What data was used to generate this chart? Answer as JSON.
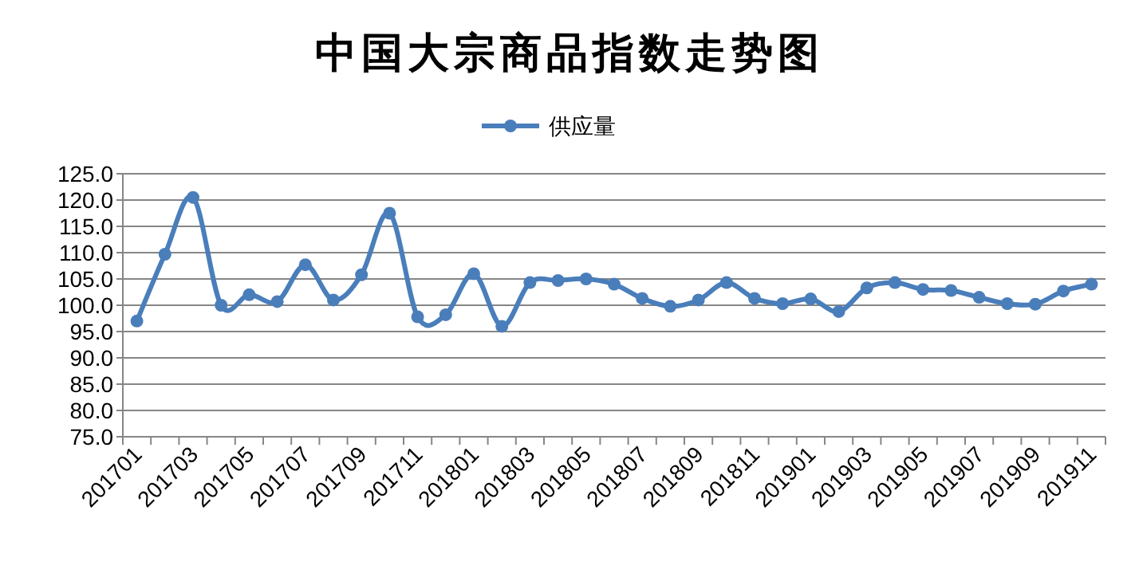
{
  "chart_data": {
    "type": "line",
    "title": "中国大宗商品指数走势图",
    "categories": [
      "201701",
      null,
      "201703",
      null,
      "201705",
      null,
      "201707",
      null,
      "201709",
      null,
      "201711",
      null,
      "201801",
      null,
      "201803",
      null,
      "201805",
      null,
      "201807",
      null,
      "201809",
      null,
      "201811",
      null,
      "201901",
      null,
      "201903",
      null,
      "201905",
      null,
      "201907",
      null,
      "201909",
      null,
      "201911"
    ],
    "series": [
      {
        "name": "供应量",
        "color": "#4a7ebb",
        "values": [
          97,
          109.7,
          120.5,
          100,
          102,
          100.7,
          107.7,
          101,
          105.8,
          117.5,
          97.8,
          98.2,
          106,
          96,
          104.3,
          104.7,
          105,
          104,
          101.3,
          99.8,
          101,
          104.3,
          101.3,
          100.3,
          101.2,
          98.8,
          103.3,
          104.3,
          103,
          102.8,
          101.5,
          100.3,
          100.2,
          102.7,
          104
        ]
      }
    ],
    "ylim": [
      75,
      125
    ],
    "yticks": [
      {
        "value": 75,
        "label": "75.0"
      },
      {
        "value": 80,
        "label": "80.0"
      },
      {
        "value": 85,
        "label": "85.0"
      },
      {
        "value": 90,
        "label": "90.0"
      },
      {
        "value": 95,
        "label": "95.0"
      },
      {
        "value": 100,
        "label": "100.0"
      },
      {
        "value": 105,
        "label": "105.0"
      },
      {
        "value": 110,
        "label": "110.0"
      },
      {
        "value": 115,
        "label": "115.0"
      },
      {
        "value": 120,
        "label": "120.0"
      },
      {
        "value": 125,
        "label": "125.0"
      }
    ],
    "grid": "y",
    "legend": "top",
    "marker": "circle",
    "line_style": "solid"
  }
}
